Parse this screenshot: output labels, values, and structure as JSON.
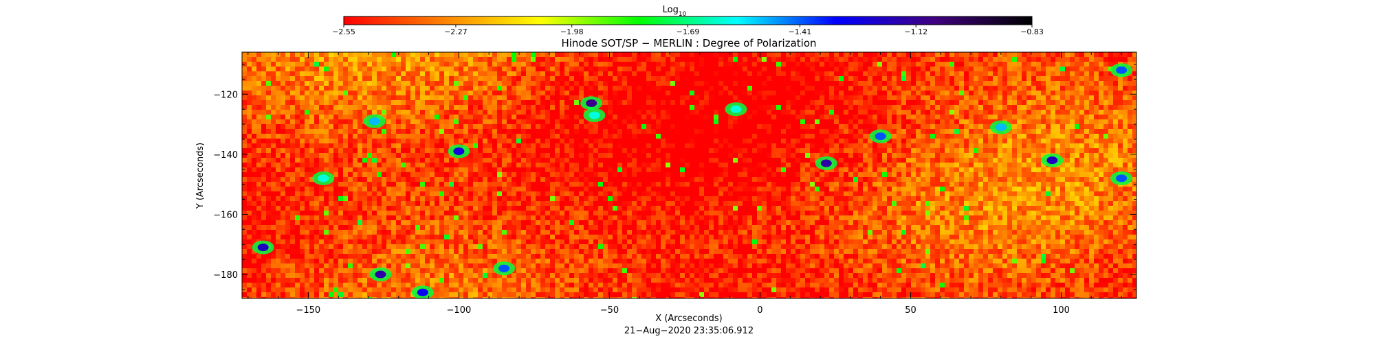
{
  "chart_data": {
    "type": "heatmap",
    "title": "Hinode SOT/SP − MERLIN : Degree of Polarization",
    "timestamp": "21−Aug−2020 23:35:06.912",
    "xlabel": "X (Arcseconds)",
    "ylabel": "Y (Arcseconds)",
    "xlim": [
      -172,
      125
    ],
    "ylim": [
      -188,
      -106
    ],
    "x_ticks": [
      -150,
      -100,
      -50,
      0,
      50,
      100
    ],
    "x_tick_labels": [
      "−150",
      "−100",
      "−50",
      "0",
      "50",
      "100"
    ],
    "y_ticks": [
      -120,
      -140,
      -160,
      -180
    ],
    "y_tick_labels": [
      "−120",
      "−140",
      "−160",
      "−180"
    ],
    "colorbar": {
      "label_base": "Log",
      "label_sub": "10",
      "range": [
        -2.55,
        -0.83
      ],
      "ticks": [
        -2.55,
        -2.27,
        -1.98,
        -1.69,
        -1.41,
        -1.12,
        -0.83
      ],
      "tick_labels": [
        "−2.55",
        "−2.27",
        "−1.98",
        "−1.69",
        "−1.41",
        "−1.12",
        "−0.83"
      ],
      "colors": [
        "#ff0000",
        "#ff8000",
        "#ffff00",
        "#00ff00",
        "#00ffff",
        "#0000ff",
        "#400080",
        "#000000"
      ]
    },
    "field_description": "predominantly low values (red/orange/yellow) with scattered high-polarization patches (green/blue)",
    "patches": [
      {
        "x": -165,
        "y": -171,
        "v": -1.2
      },
      {
        "x": -126,
        "y": -180,
        "v": -1.15
      },
      {
        "x": -128,
        "y": -129,
        "v": -1.5
      },
      {
        "x": -100,
        "y": -139,
        "v": -1.25
      },
      {
        "x": -55,
        "y": -127,
        "v": -1.6
      },
      {
        "x": -56,
        "y": -123,
        "v": -1.1
      },
      {
        "x": -8,
        "y": -125,
        "v": -1.6
      },
      {
        "x": 22,
        "y": -143,
        "v": -1.15
      },
      {
        "x": 40,
        "y": -134,
        "v": -1.4
      },
      {
        "x": 97,
        "y": -142,
        "v": -1.2
      },
      {
        "x": 80,
        "y": -131,
        "v": -1.5
      },
      {
        "x": 120,
        "y": -148,
        "v": -1.4
      },
      {
        "x": 120,
        "y": -112,
        "v": -1.4
      },
      {
        "x": -145,
        "y": -148,
        "v": -1.6
      },
      {
        "x": -112,
        "y": -186,
        "v": -1.3
      },
      {
        "x": -85,
        "y": -178,
        "v": -1.4
      }
    ]
  }
}
